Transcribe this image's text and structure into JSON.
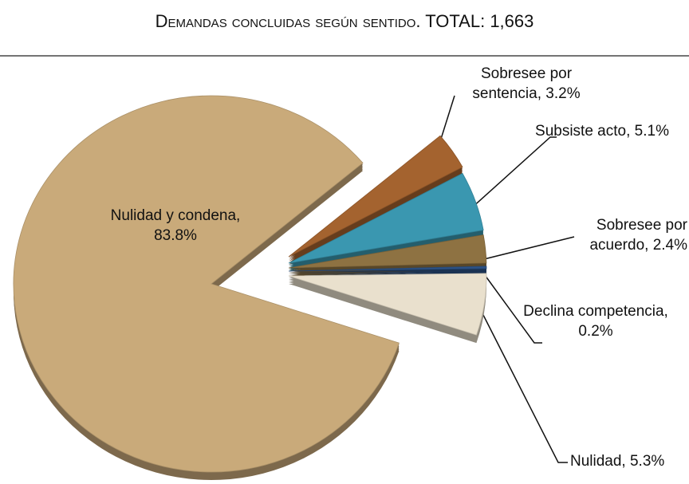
{
  "chart_data": {
    "type": "pie",
    "title": "Demandas concluidas según sentido. TOTAL: 1,663",
    "values": [
      3.2,
      5.1,
      2.4,
      0.2,
      5.3,
      83.8
    ],
    "value_labels": [
      "Sobresee por sentencia, 3.2%",
      "Subsiste acto, 5.1%",
      "Sobresee por acuerdo, 2.4%",
      "Declina competencia, 0.2%",
      "Nulidad, 5.3%",
      "Nulidad y condena, 83.8%"
    ],
    "colors": [
      "#a4632f",
      "#3a97b0",
      "#8e7242",
      "#2c5286",
      "#e9e0cd",
      "#c9aa7a"
    ]
  }
}
